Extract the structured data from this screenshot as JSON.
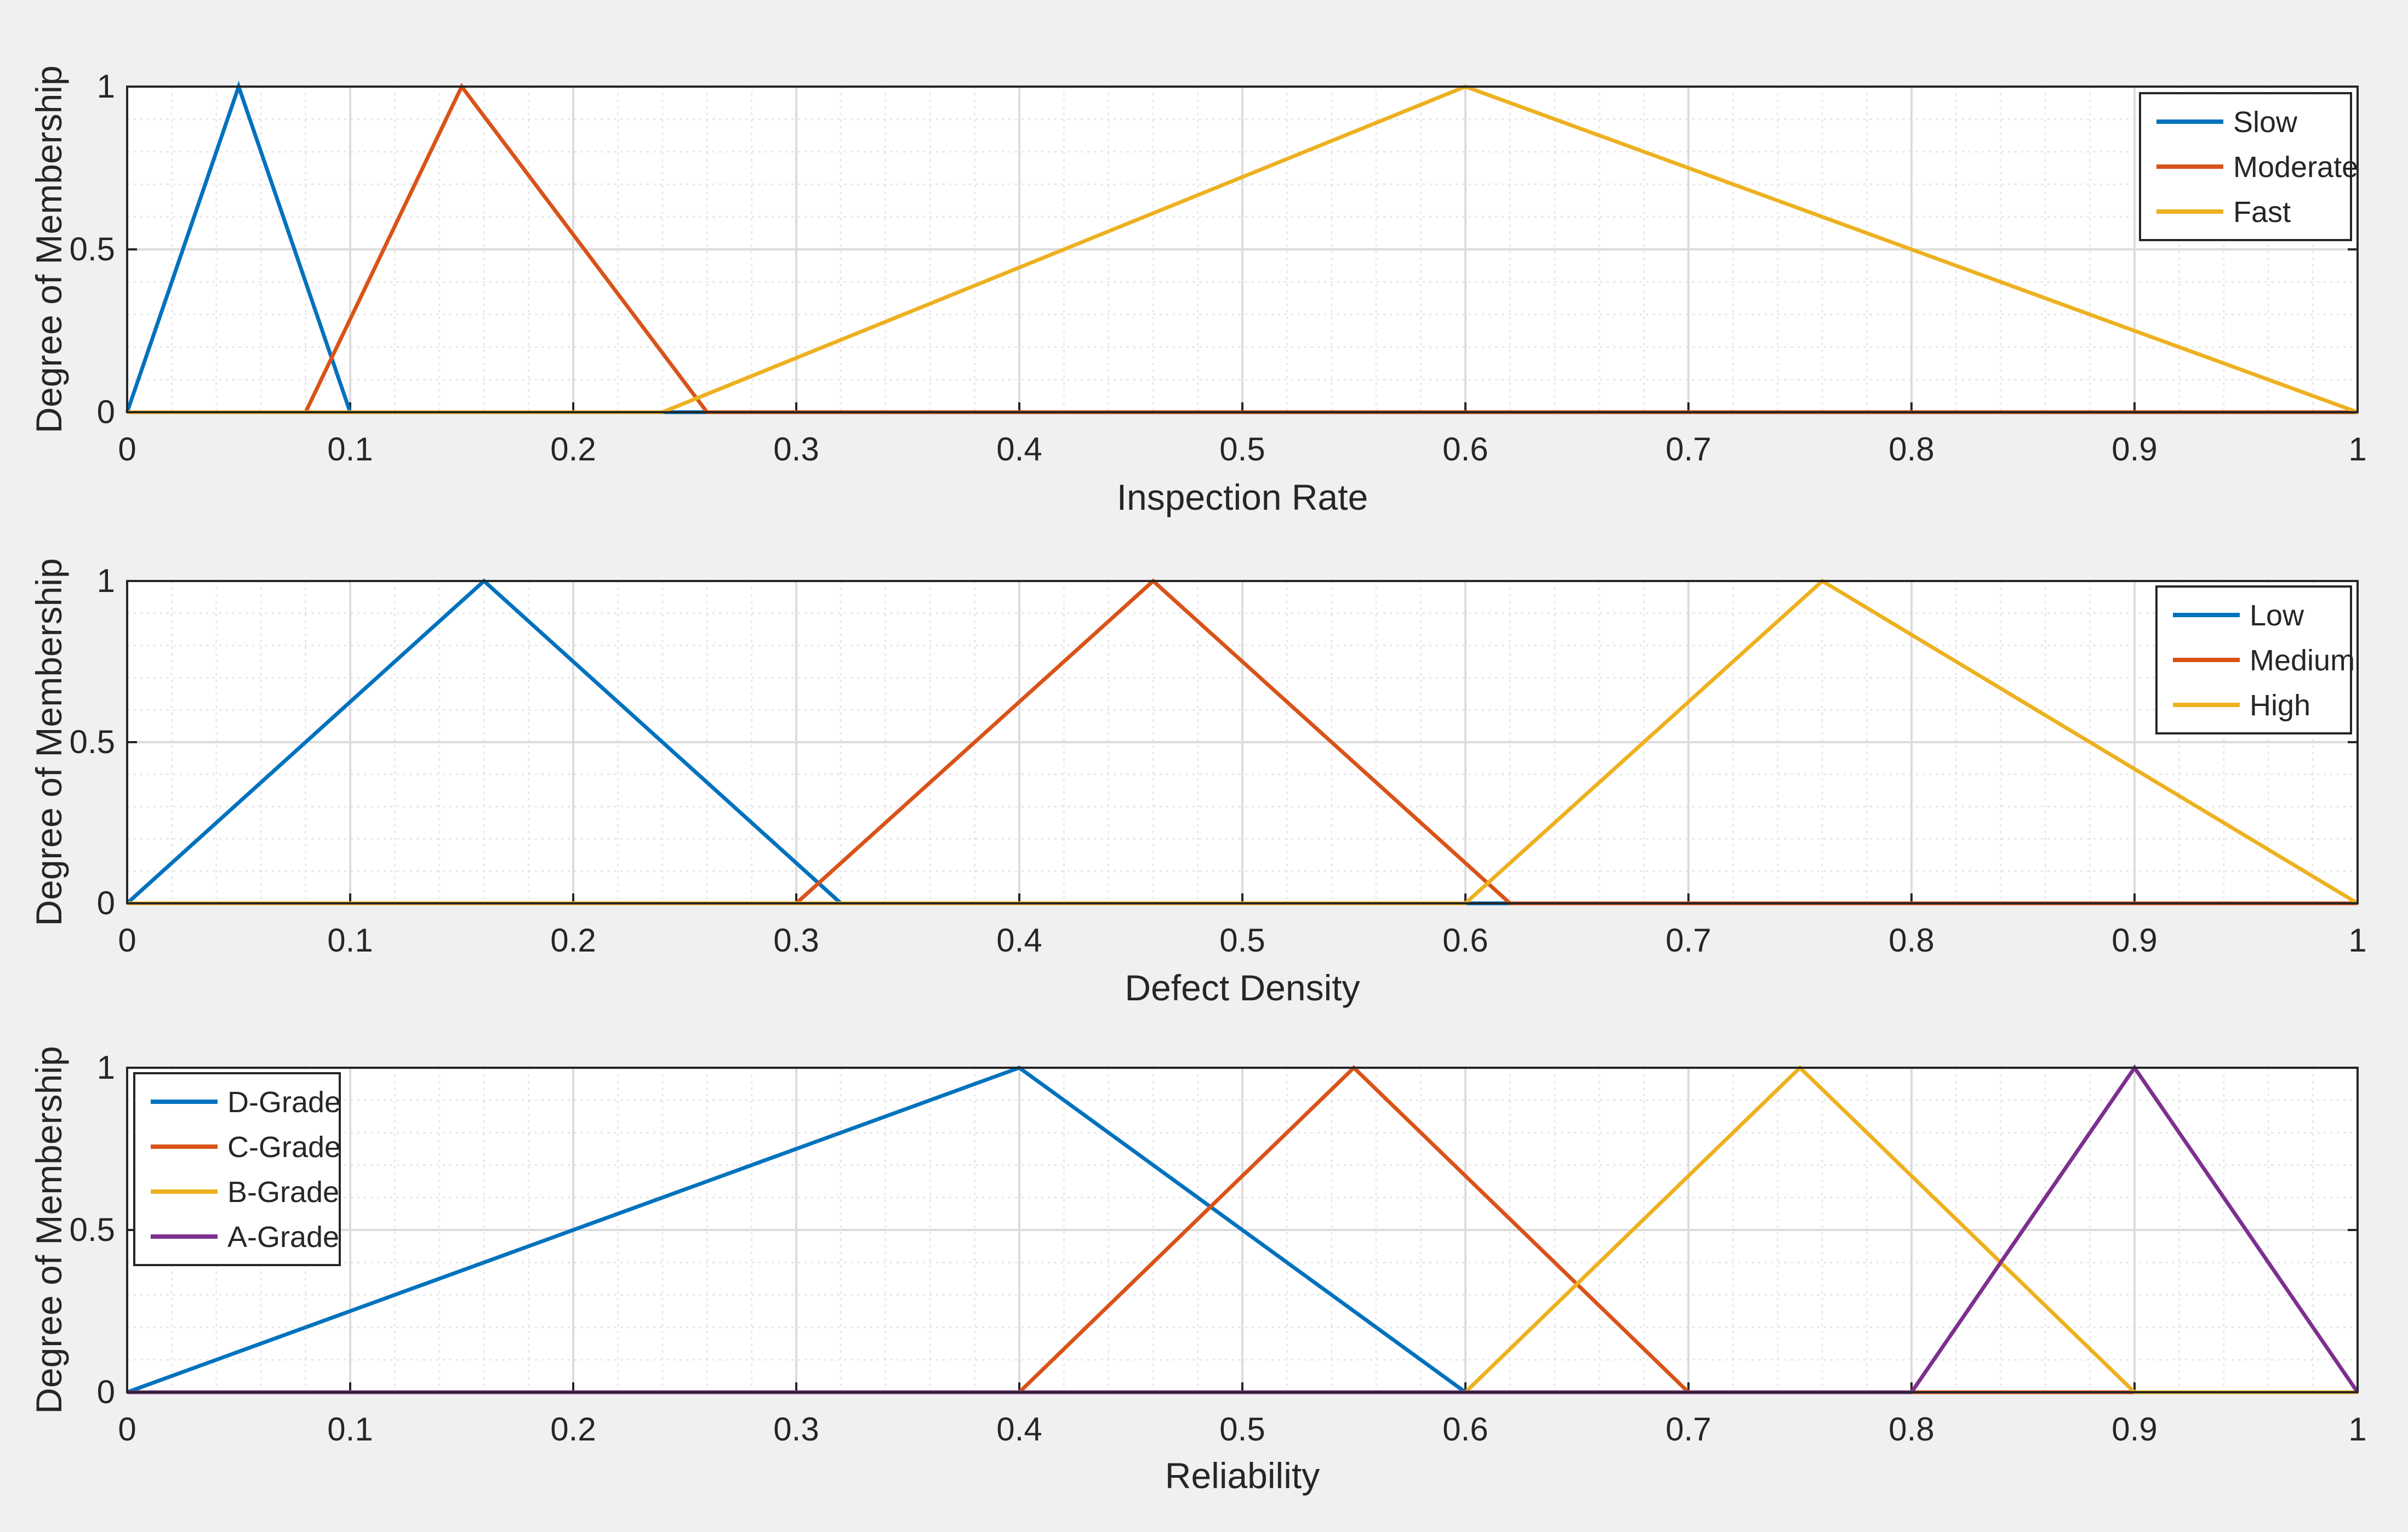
{
  "colors": {
    "figure_bg": "#f0f0f0",
    "axes_bg": "#ffffff",
    "axis": "#262626",
    "grid": "#dcdcdc",
    "minor_grid": "#e6e6e6",
    "blue": "#0072BD",
    "orange": "#D95319",
    "yellow": "#EDB120",
    "purple": "#7E2F8E"
  },
  "chart_data": [
    {
      "type": "line",
      "xlabel": "Inspection Rate",
      "ylabel": "Degree of Membership",
      "xlim": [
        0,
        1
      ],
      "ylim": [
        0,
        1
      ],
      "xticks": [
        "0",
        "0.1",
        "0.2",
        "0.3",
        "0.4",
        "0.5",
        "0.6",
        "0.7",
        "0.8",
        "0.9",
        "1"
      ],
      "yticks": [
        "0",
        "0.5",
        "1"
      ],
      "grid": true,
      "minor_grid": true,
      "legend_position": "top-right",
      "series": [
        {
          "name": "Slow",
          "color": "blue",
          "x": [
            0,
            0.05,
            0.1,
            1
          ],
          "y": [
            0,
            1,
            0,
            0
          ]
        },
        {
          "name": "Moderate",
          "color": "orange",
          "x": [
            0,
            0.08,
            0.15,
            0.26,
            1
          ],
          "y": [
            0,
            0,
            1,
            0,
            0
          ]
        },
        {
          "name": "Fast",
          "color": "yellow",
          "x": [
            0,
            0.24,
            0.6,
            1
          ],
          "y": [
            0,
            0,
            1,
            0
          ]
        }
      ]
    },
    {
      "type": "line",
      "xlabel": "Defect Density",
      "ylabel": "Degree of Membership",
      "xlim": [
        0,
        1
      ],
      "ylim": [
        0,
        1
      ],
      "xticks": [
        "0",
        "0.1",
        "0.2",
        "0.3",
        "0.4",
        "0.5",
        "0.6",
        "0.7",
        "0.8",
        "0.9",
        "1"
      ],
      "yticks": [
        "0",
        "0.5",
        "1"
      ],
      "grid": true,
      "minor_grid": true,
      "legend_position": "top-right",
      "series": [
        {
          "name": "Low",
          "color": "blue",
          "x": [
            0,
            0.16,
            0.32,
            1
          ],
          "y": [
            0,
            1,
            0,
            0
          ]
        },
        {
          "name": "Medium",
          "color": "orange",
          "x": [
            0,
            0.3,
            0.46,
            0.62,
            1
          ],
          "y": [
            0,
            0,
            1,
            0,
            0
          ]
        },
        {
          "name": "High",
          "color": "yellow",
          "x": [
            0,
            0.6,
            0.76,
            1
          ],
          "y": [
            0,
            0,
            1,
            0
          ]
        }
      ]
    },
    {
      "type": "line",
      "xlabel": "Reliability",
      "ylabel": "Degree of Membership",
      "xlim": [
        0,
        1
      ],
      "ylim": [
        0,
        1
      ],
      "xticks": [
        "0",
        "0.1",
        "0.2",
        "0.3",
        "0.4",
        "0.5",
        "0.6",
        "0.7",
        "0.8",
        "0.9",
        "1"
      ],
      "yticks": [
        "0",
        "0.5",
        "1"
      ],
      "grid": true,
      "minor_grid": true,
      "legend_position": "top-left",
      "series": [
        {
          "name": "D-Grade",
          "color": "blue",
          "x": [
            0,
            0.4,
            0.6,
            1
          ],
          "y": [
            0,
            1,
            0,
            0
          ]
        },
        {
          "name": "C-Grade",
          "color": "orange",
          "x": [
            0,
            0.4,
            0.55,
            0.7,
            1
          ],
          "y": [
            0,
            0,
            1,
            0,
            0
          ]
        },
        {
          "name": "B-Grade",
          "color": "yellow",
          "x": [
            0,
            0.6,
            0.75,
            0.9,
            1
          ],
          "y": [
            0,
            0,
            1,
            0,
            0
          ]
        },
        {
          "name": "A-Grade",
          "color": "purple",
          "x": [
            0,
            0.8,
            0.9,
            1
          ],
          "y": [
            0,
            0,
            1,
            0
          ]
        }
      ]
    }
  ]
}
